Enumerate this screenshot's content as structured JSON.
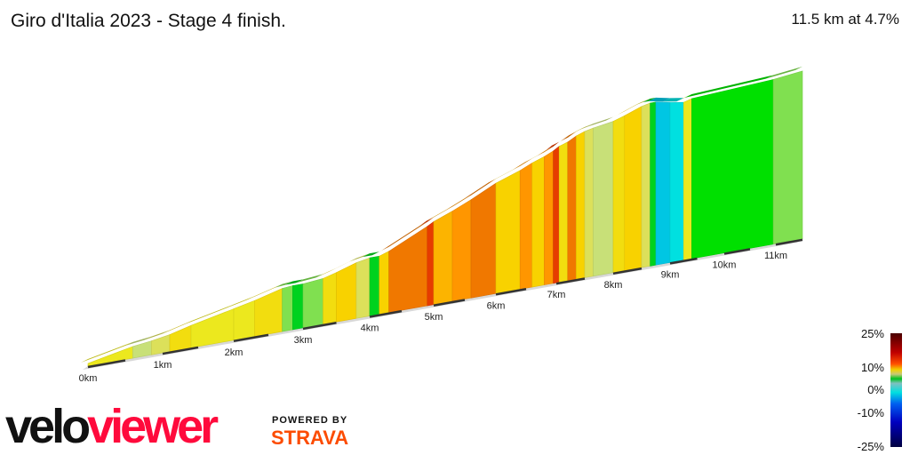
{
  "header": {
    "title": "Giro d'Italia 2023 - Stage 4 finish.",
    "summary": "11.5 km at 4.7%"
  },
  "legend": {
    "labels": [
      "25%",
      "10%",
      "0%",
      "-10%",
      "-25%"
    ]
  },
  "branding": {
    "logo_part1": "velo",
    "logo_part2": "viewer",
    "powered_by": "POWERED BY",
    "strava": "STRAVA"
  },
  "chart_data": {
    "type": "area",
    "title": "Giro d'Italia 2023 - Stage 4 finish.",
    "xlabel": "",
    "ylabel": "",
    "x_unit": "km",
    "xlim": [
      0,
      11.5
    ],
    "tick_labels": [
      "0km",
      "1km",
      "2km",
      "3km",
      "4km",
      "5km",
      "6km",
      "7km",
      "8km",
      "9km",
      "10km",
      "11km"
    ],
    "color_scale": {
      "min": -25,
      "max": 25,
      "labels": [
        "25%",
        "10%",
        "0%",
        "-10%",
        "-25%"
      ]
    },
    "segments": [
      {
        "start": 0,
        "end": 0.6,
        "gradient": 5
      },
      {
        "start": 0.6,
        "end": 0.85,
        "gradient": 3
      },
      {
        "start": 0.85,
        "end": 1.1,
        "gradient": 4
      },
      {
        "start": 1.1,
        "end": 1.4,
        "gradient": 6
      },
      {
        "start": 1.4,
        "end": 2.0,
        "gradient": 5
      },
      {
        "start": 2.0,
        "end": 2.3,
        "gradient": 5
      },
      {
        "start": 2.3,
        "end": 2.7,
        "gradient": 6
      },
      {
        "start": 2.7,
        "end": 2.85,
        "gradient": 2
      },
      {
        "start": 2.85,
        "end": 3.0,
        "gradient": 0
      },
      {
        "start": 3.0,
        "end": 3.3,
        "gradient": 2
      },
      {
        "start": 3.3,
        "end": 3.5,
        "gradient": 6
      },
      {
        "start": 3.5,
        "end": 3.8,
        "gradient": 7
      },
      {
        "start": 3.8,
        "end": 4.0,
        "gradient": 4
      },
      {
        "start": 4.0,
        "end": 4.15,
        "gradient": 0
      },
      {
        "start": 4.15,
        "end": 4.3,
        "gradient": 7
      },
      {
        "start": 4.3,
        "end": 4.9,
        "gradient": 10
      },
      {
        "start": 4.9,
        "end": 5.0,
        "gradient": 12
      },
      {
        "start": 5.0,
        "end": 5.3,
        "gradient": 8
      },
      {
        "start": 5.3,
        "end": 5.6,
        "gradient": 9
      },
      {
        "start": 5.6,
        "end": 6.0,
        "gradient": 10
      },
      {
        "start": 6.0,
        "end": 6.4,
        "gradient": 7
      },
      {
        "start": 6.4,
        "end": 6.6,
        "gradient": 9
      },
      {
        "start": 6.6,
        "end": 6.8,
        "gradient": 7
      },
      {
        "start": 6.8,
        "end": 6.95,
        "gradient": 9
      },
      {
        "start": 6.95,
        "end": 7.05,
        "gradient": 12
      },
      {
        "start": 7.05,
        "end": 7.2,
        "gradient": 6
      },
      {
        "start": 7.2,
        "end": 7.35,
        "gradient": 10
      },
      {
        "start": 7.35,
        "end": 7.5,
        "gradient": 7
      },
      {
        "start": 7.5,
        "end": 7.65,
        "gradient": 4
      },
      {
        "start": 7.65,
        "end": 8.0,
        "gradient": 3
      },
      {
        "start": 8.0,
        "end": 8.2,
        "gradient": 6
      },
      {
        "start": 8.2,
        "end": 8.5,
        "gradient": 7
      },
      {
        "start": 8.5,
        "end": 8.65,
        "gradient": 4
      },
      {
        "start": 8.65,
        "end": 8.75,
        "gradient": 0
      },
      {
        "start": 8.75,
        "end": 9.0,
        "gradient": -4
      },
      {
        "start": 9.0,
        "end": 9.25,
        "gradient": -3
      },
      {
        "start": 9.25,
        "end": 9.4,
        "gradient": 5
      },
      {
        "start": 9.4,
        "end": 10.95,
        "gradient": 1
      },
      {
        "start": 10.95,
        "end": 11.5,
        "gradient": 2
      }
    ]
  }
}
